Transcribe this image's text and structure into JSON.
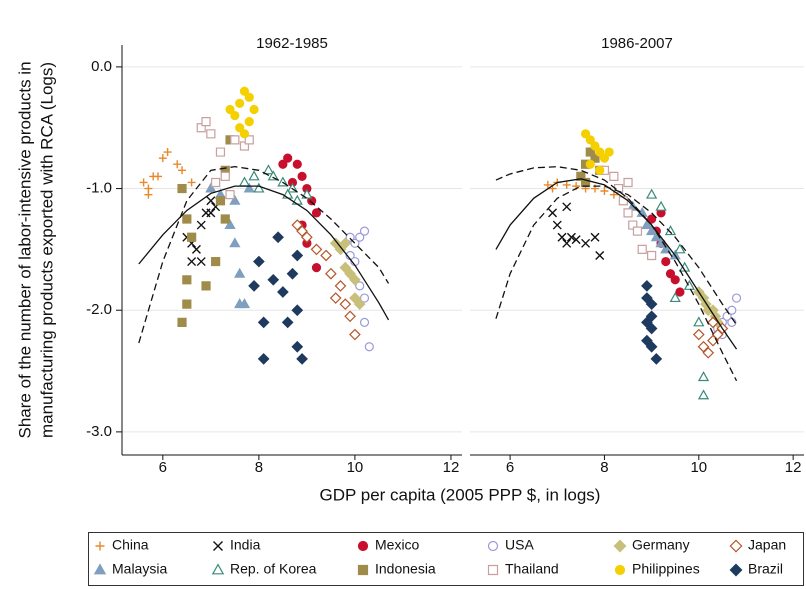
{
  "chart_data": {
    "type": "scatter",
    "x_label": "GDP per capita (2005 PPP $, in logs)",
    "y_label": [
      "Share of the number of labor-intensive products in",
      "manufacturing products exported with RCA (Logs)"
    ],
    "xlim": [
      5.15,
      12.23
    ],
    "xticks": [
      6,
      8,
      10,
      12
    ],
    "ylim": [
      -3.19,
      0.18
    ],
    "yticks": [
      {
        "value": -3,
        "label": "-3.0"
      },
      {
        "value": -2,
        "label": "-2.0"
      },
      {
        "value": -1,
        "label": "-1.0"
      },
      {
        "value": 0,
        "label": "0.0"
      }
    ],
    "grid": true,
    "legend_position": "bottom",
    "panels": [
      {
        "title": "1962-1985",
        "fits": [
          {
            "style": "solid",
            "x": [
              5.5,
              6,
              6.5,
              7,
              7.5,
              8,
              8.5,
              9,
              9.5,
              10,
              10.5,
              10.7
            ],
            "y": [
              -1.62,
              -1.38,
              -1.18,
              -1.04,
              -0.98,
              -0.98,
              -1.05,
              -1.18,
              -1.38,
              -1.63,
              -1.94,
              -2.08
            ]
          },
          {
            "style": "dashed",
            "x": [
              5.5,
              6,
              6.5,
              7,
              7.5,
              8,
              8.5,
              9,
              9.5,
              10,
              10.5,
              10.7
            ],
            "y": [
              -2.27,
              -1.6,
              -1.1,
              -0.85,
              -0.82,
              -0.85,
              -0.95,
              -1.08,
              -1.25,
              -1.45,
              -1.65,
              -1.78
            ]
          }
        ]
      },
      {
        "title": "1986-2007",
        "fits": [
          {
            "style": "solid",
            "x": [
              5.7,
              6,
              6.5,
              7,
              7.5,
              8,
              8.5,
              9,
              9.5,
              10,
              10.5,
              10.8
            ],
            "y": [
              -1.5,
              -1.3,
              -1.08,
              -0.95,
              -0.92,
              -0.97,
              -1.1,
              -1.3,
              -1.55,
              -1.85,
              -2.15,
              -2.32
            ]
          },
          {
            "style": "dashed",
            "x": [
              5.7,
              6,
              6.5,
              7,
              7.5,
              8,
              8.5,
              9,
              9.5,
              10,
              10.5,
              10.8
            ],
            "y": [
              -0.93,
              -0.88,
              -0.83,
              -0.82,
              -0.85,
              -0.93,
              -1.08,
              -1.3,
              -1.6,
              -1.95,
              -2.35,
              -2.58
            ]
          },
          {
            "style": "dashed",
            "x": [
              5.7,
              6,
              6.5,
              7,
              7.5,
              8,
              8.5,
              9,
              9.5,
              10,
              10.5,
              10.8
            ],
            "y": [
              -2.07,
              -1.7,
              -1.3,
              -1.08,
              -0.98,
              -0.98,
              -1.05,
              -1.2,
              -1.4,
              -1.65,
              -1.95,
              -2.12
            ]
          }
        ]
      }
    ],
    "series": [
      {
        "name": "China",
        "color": "#e8882a",
        "marker": "plus",
        "filled": true,
        "data": [
          {
            "x": [
              5.6,
              5.7,
              5.8,
              5.9,
              6.0,
              6.1,
              6.3,
              6.4,
              6.6,
              5.7
            ],
            "y": [
              -0.95,
              -1.0,
              -0.9,
              -0.9,
              -0.75,
              -0.7,
              -0.8,
              -0.85,
              -0.95,
              -1.05
            ]
          },
          {
            "x": [
              6.8,
              7.0,
              7.2,
              7.4,
              7.6,
              7.8,
              8.0,
              8.2,
              8.4,
              6.9
            ],
            "y": [
              -0.97,
              -0.95,
              -0.97,
              -0.98,
              -1.0,
              -1.0,
              -1.02,
              -1.05,
              -1.1,
              -1.0
            ]
          }
        ]
      },
      {
        "name": "India",
        "color": "#111111",
        "marker": "cross",
        "filled": true,
        "data": [
          {
            "x": [
              6.5,
              6.6,
              6.7,
              6.8,
              6.9,
              7.0,
              7.1,
              6.6,
              6.8,
              7.0
            ],
            "y": [
              -1.4,
              -1.6,
              -1.5,
              -1.3,
              -1.2,
              -1.2,
              -1.15,
              -1.45,
              -1.6,
              -1.1
            ]
          },
          {
            "x": [
              6.9,
              7.0,
              7.1,
              7.2,
              7.3,
              7.4,
              7.6,
              7.8,
              7.9,
              7.2
            ],
            "y": [
              -1.2,
              -1.3,
              -1.4,
              -1.45,
              -1.4,
              -1.42,
              -1.45,
              -1.4,
              -1.55,
              -1.15
            ]
          }
        ]
      },
      {
        "name": "Mexico",
        "color": "#c8102e",
        "marker": "circle",
        "filled": true,
        "data": [
          {
            "x": [
              8.5,
              8.6,
              8.8,
              8.9,
              9.0,
              9.1,
              9.2,
              8.7,
              9.0,
              9.2,
              8.9
            ],
            "y": [
              -0.8,
              -0.75,
              -0.8,
              -0.9,
              -1.0,
              -1.1,
              -1.2,
              -0.95,
              -1.45,
              -1.65,
              -1.3
            ]
          },
          {
            "x": [
              9.0,
              9.1,
              9.2,
              9.3,
              9.4,
              9.5,
              9.6,
              9.2
            ],
            "y": [
              -1.25,
              -1.35,
              -1.45,
              -1.6,
              -1.7,
              -1.75,
              -1.85,
              -1.2
            ]
          }
        ]
      },
      {
        "name": "USA",
        "color": "#9a9ad8",
        "marker": "circle",
        "filled": false,
        "data": [
          {
            "x": [
              9.9,
              10.0,
              10.1,
              10.2,
              9.9,
              10.0,
              10.2,
              10.2,
              10.3,
              10.1
            ],
            "y": [
              -1.4,
              -1.45,
              -1.4,
              -1.35,
              -1.55,
              -1.6,
              -1.9,
              -2.1,
              -2.3,
              -1.8
            ]
          },
          {
            "x": [
              10.4,
              10.5,
              10.6,
              10.7,
              10.7,
              10.8,
              10.5
            ],
            "y": [
              -2.15,
              -2.1,
              -2.05,
              -2.0,
              -2.1,
              -1.9,
              -2.2
            ]
          }
        ]
      },
      {
        "name": "Germany",
        "color": "#c8c07a",
        "marker": "diamond",
        "filled": true,
        "data": [
          {
            "x": [
              9.6,
              9.7,
              9.8,
              9.8,
              9.9,
              10.0,
              10.0,
              10.1
            ],
            "y": [
              -1.45,
              -1.5,
              -1.45,
              -1.65,
              -1.7,
              -1.75,
              -1.9,
              -1.95
            ]
          },
          {
            "x": [
              10.0,
              10.1,
              10.15,
              10.2,
              10.3,
              10.35,
              10.4
            ],
            "y": [
              -1.85,
              -1.9,
              -1.95,
              -2.0,
              -2.0,
              -2.05,
              -2.1
            ]
          }
        ]
      },
      {
        "name": "Japan",
        "color": "#b5562a",
        "marker": "diamond",
        "filled": false,
        "data": [
          {
            "x": [
              8.8,
              8.9,
              9.0,
              9.2,
              9.4,
              9.5,
              9.7,
              9.8,
              9.9,
              10.0,
              9.6
            ],
            "y": [
              -1.3,
              -1.35,
              -1.4,
              -1.5,
              -1.55,
              -1.7,
              -1.8,
              -1.95,
              -2.05,
              -2.2,
              -1.9
            ]
          },
          {
            "x": [
              10.0,
              10.1,
              10.2,
              10.3,
              10.4,
              10.5,
              10.3
            ],
            "y": [
              -2.2,
              -2.3,
              -2.35,
              -2.25,
              -2.2,
              -2.15,
              -2.1
            ]
          }
        ]
      },
      {
        "name": "Malaysia",
        "color": "#7f9fbf",
        "marker": "triangle",
        "filled": true,
        "data": [
          {
            "x": [
              7.0,
              7.2,
              7.4,
              7.5,
              7.6,
              7.7,
              7.6,
              7.8,
              7.5
            ],
            "y": [
              -1.0,
              -1.05,
              -1.3,
              -1.45,
              -1.7,
              -1.95,
              -1.95,
              -1.0,
              -1.1
            ]
          },
          {
            "x": [
              8.6,
              8.8,
              8.9,
              9.0,
              9.1,
              9.2,
              9.3,
              9.5
            ],
            "y": [
              -1.15,
              -1.2,
              -1.3,
              -1.35,
              -1.4,
              -1.45,
              -1.5,
              -1.55
            ]
          }
        ]
      },
      {
        "name": "Rep. of Korea",
        "color": "#3a8a7a",
        "marker": "triangle",
        "filled": false,
        "data": [
          {
            "x": [
              7.7,
              7.9,
              8.0,
              8.2,
              8.3,
              8.5,
              8.7,
              8.8,
              9.0,
              8.6
            ],
            "y": [
              -0.95,
              -0.9,
              -1.0,
              -0.85,
              -0.9,
              -0.95,
              -1.0,
              -1.1,
              -1.05,
              -1.05
            ]
          },
          {
            "x": [
              9.0,
              9.2,
              9.4,
              9.6,
              9.7,
              9.8,
              10.0,
              10.1,
              10.1,
              9.5
            ],
            "y": [
              -1.05,
              -1.15,
              -1.35,
              -1.5,
              -1.65,
              -1.8,
              -2.1,
              -2.55,
              -2.7,
              -1.9
            ]
          }
        ]
      },
      {
        "name": "Indonesia",
        "color": "#a08c4a",
        "marker": "square",
        "filled": true,
        "data": [
          {
            "x": [
              6.4,
              6.5,
              6.5,
              6.5,
              6.6,
              6.9,
              7.1,
              7.3,
              7.2,
              7.3,
              6.4,
              7.4
            ],
            "y": [
              -2.1,
              -1.95,
              -1.75,
              -1.25,
              -1.4,
              -1.8,
              -1.6,
              -1.25,
              -1.1,
              -0.85,
              -1.0,
              -0.6
            ]
          },
          {
            "x": [
              7.5,
              7.6,
              7.7,
              7.8,
              7.9,
              7.6
            ],
            "y": [
              -0.9,
              -0.8,
              -0.7,
              -0.75,
              -0.85,
              -0.95
            ]
          }
        ]
      },
      {
        "name": "Thailand",
        "color": "#c8a0a0",
        "marker": "square",
        "filled": false,
        "data": [
          {
            "x": [
              6.8,
              6.9,
              7.0,
              7.2,
              7.3,
              7.5,
              7.7,
              7.8,
              7.4,
              7.1
            ],
            "y": [
              -0.5,
              -0.45,
              -0.55,
              -0.7,
              -0.9,
              -0.6,
              -0.65,
              -0.6,
              -1.05,
              -0.95
            ]
          },
          {
            "x": [
              8.0,
              8.2,
              8.3,
              8.4,
              8.5,
              8.6,
              8.7,
              8.8,
              9.0,
              8.5
            ],
            "y": [
              -0.85,
              -0.9,
              -1.0,
              -1.1,
              -1.2,
              -1.3,
              -1.35,
              -1.5,
              -1.55,
              -0.95
            ]
          }
        ]
      },
      {
        "name": "Philippines",
        "color": "#f5d000",
        "marker": "circle",
        "filled": true,
        "data": [
          {
            "x": [
              7.4,
              7.5,
              7.6,
              7.7,
              7.8,
              7.9,
              7.6,
              7.8,
              7.7
            ],
            "y": [
              -0.35,
              -0.4,
              -0.3,
              -0.2,
              -0.25,
              -0.35,
              -0.5,
              -0.45,
              -0.55
            ]
          },
          {
            "x": [
              7.6,
              7.7,
              7.8,
              7.9,
              8.0,
              7.7,
              7.9,
              8.1
            ],
            "y": [
              -0.55,
              -0.6,
              -0.65,
              -0.7,
              -0.75,
              -0.8,
              -0.85,
              -0.7
            ]
          }
        ]
      },
      {
        "name": "Brazil",
        "color": "#1f3a5f",
        "marker": "diamond",
        "filled": true,
        "data": [
          {
            "x": [
              7.9,
              8.0,
              8.1,
              8.1,
              8.3,
              8.4,
              8.5,
              8.6,
              8.7,
              8.8,
              8.8,
              8.8,
              8.9
            ],
            "y": [
              -1.8,
              -1.6,
              -2.1,
              -2.4,
              -1.75,
              -1.4,
              -1.85,
              -2.1,
              -1.7,
              -1.55,
              -2.0,
              -2.3,
              -2.4
            ]
          },
          {
            "x": [
              8.9,
              8.9,
              9.0,
              8.9,
              9.0,
              8.9,
              9.0,
              9.1,
              9.0
            ],
            "y": [
              -1.8,
              -1.9,
              -1.95,
              -2.1,
              -2.15,
              -2.25,
              -2.3,
              -2.4,
              -2.05
            ]
          }
        ]
      }
    ]
  }
}
